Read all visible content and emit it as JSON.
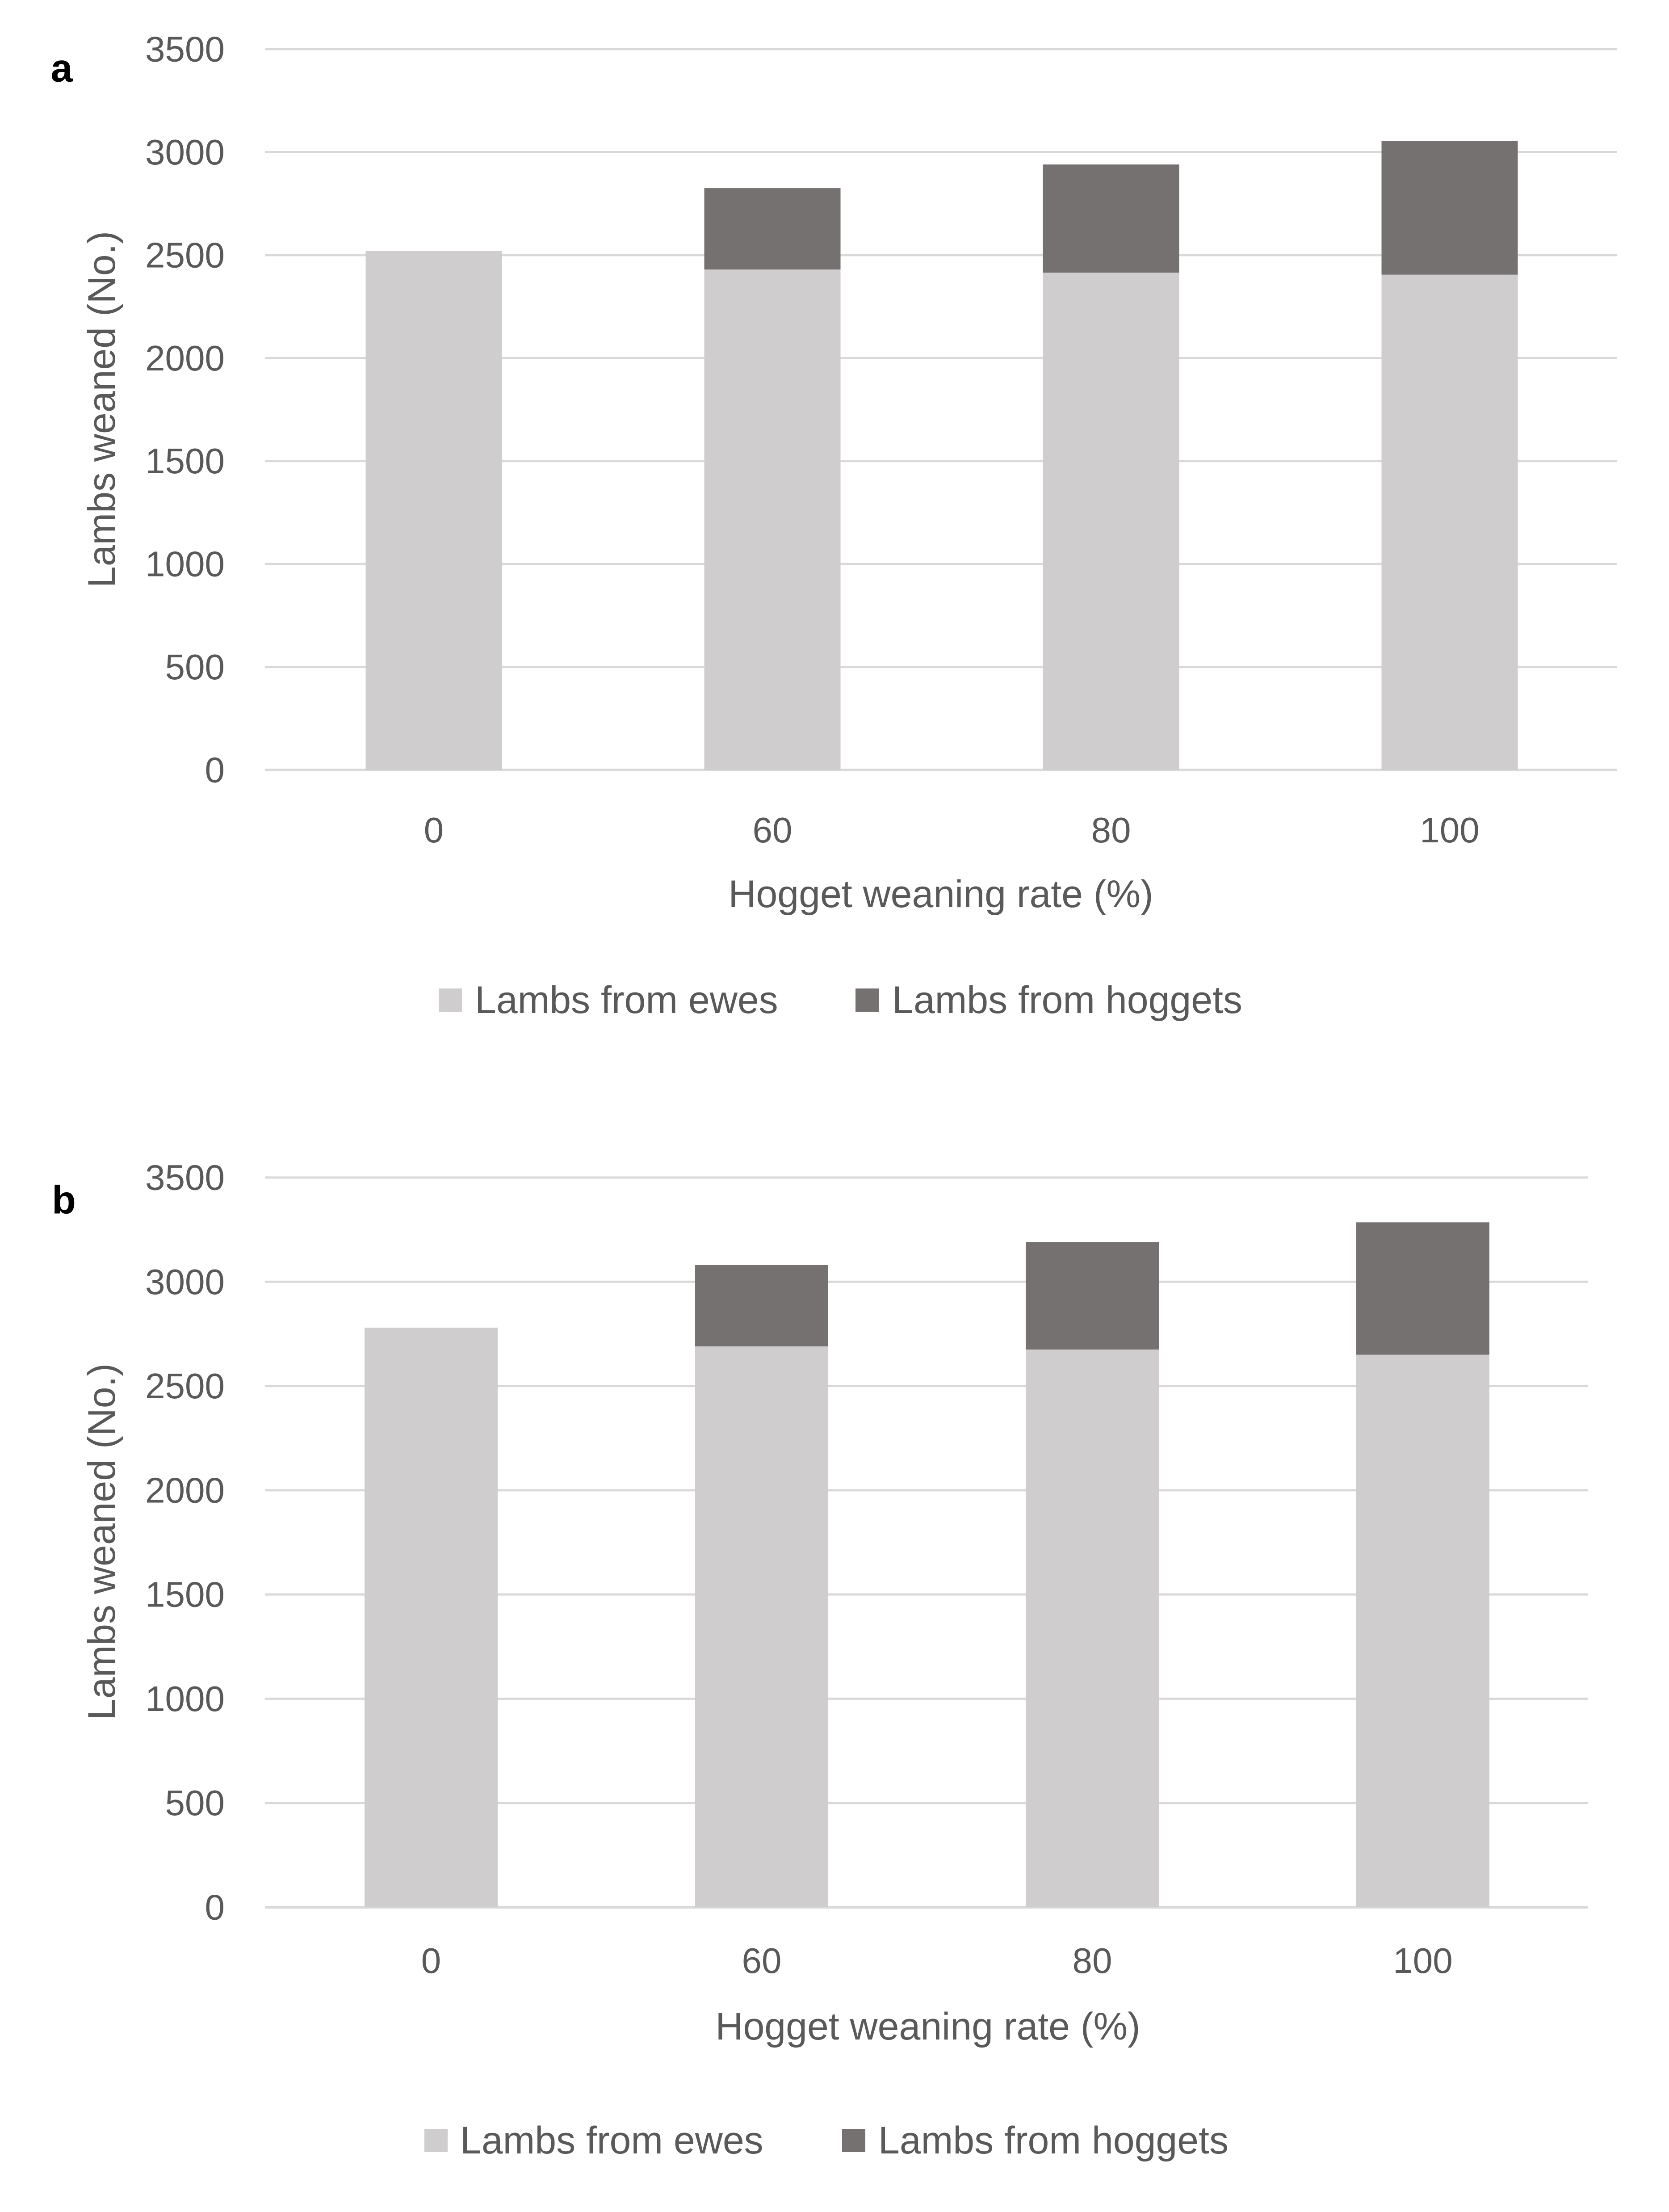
{
  "colors": {
    "ewes": "#cfcdce",
    "hoggets": "#767171",
    "grid": "#d9d9d9",
    "axis": "#d9d9d9",
    "text": "#595959",
    "panel_label": "#000000"
  },
  "chart_data": [
    {
      "type": "bar",
      "stacked": true,
      "panel_label": "a",
      "title": "",
      "xlabel": "Hogget weaning rate (%)",
      "ylabel": "Lambs weaned (No.)",
      "ylim": [
        0,
        3500
      ],
      "yticks": [
        0,
        500,
        1000,
        1500,
        2000,
        2500,
        3000,
        3500
      ],
      "ytick_labels": [
        "0",
        "500",
        "1000",
        "1500",
        "2000",
        "2500",
        "3000",
        "3500"
      ],
      "grid": true,
      "legend_position": "bottom",
      "categories": [
        "0",
        "60",
        "80",
        "100"
      ],
      "series": [
        {
          "name": "Lambs from ewes",
          "color_key": "ewes",
          "values": [
            2520,
            2430,
            2415,
            2405
          ]
        },
        {
          "name": "Lambs from hoggets",
          "color_key": "hoggets",
          "values": [
            0,
            395,
            525,
            650
          ]
        }
      ]
    },
    {
      "type": "bar",
      "stacked": true,
      "panel_label": "b",
      "title": "",
      "xlabel": "Hogget weaning rate (%)",
      "ylabel": "Lambs weaned (No.)",
      "ylim": [
        0,
        3500
      ],
      "yticks": [
        0,
        500,
        1000,
        1500,
        2000,
        2500,
        3000,
        3500
      ],
      "ytick_labels": [
        "0",
        "500",
        "1000",
        "1500",
        "2000",
        "2500",
        "3000",
        "3500"
      ],
      "grid": true,
      "legend_position": "bottom",
      "categories": [
        "0",
        "60",
        "80",
        "100"
      ],
      "series": [
        {
          "name": "Lambs from ewes",
          "color_key": "ewes",
          "values": [
            2780,
            2690,
            2675,
            2650
          ]
        },
        {
          "name": "Lambs from hoggets",
          "color_key": "hoggets",
          "values": [
            0,
            390,
            515,
            635
          ]
        }
      ]
    }
  ]
}
